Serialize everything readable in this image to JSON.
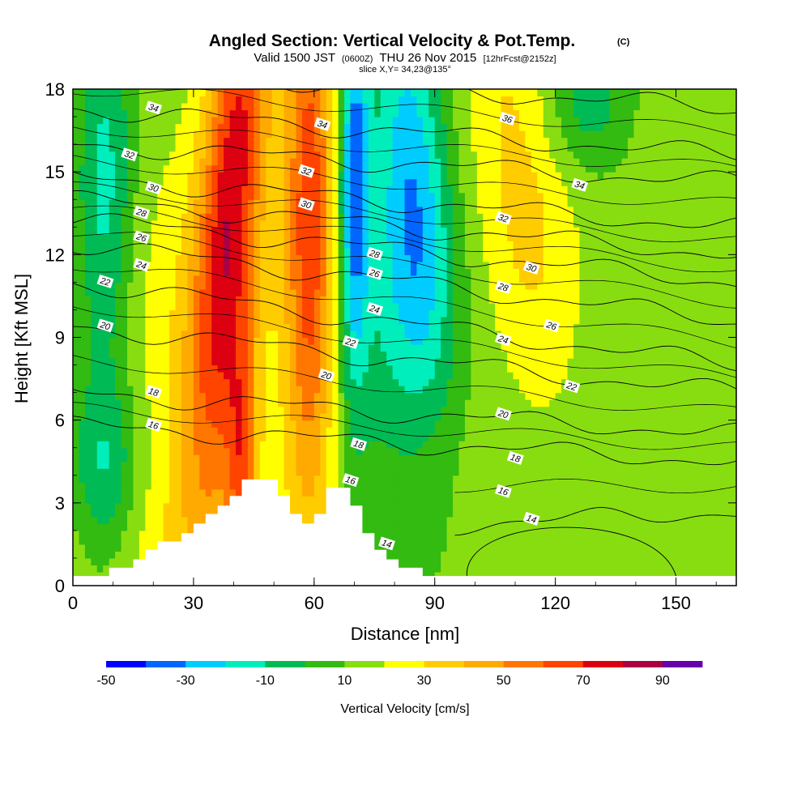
{
  "chart_data": {
    "type": "heatmap",
    "title": "Angled Section: Vertical Velocity & Pot.Temp.",
    "title_mark": "(C)",
    "subtitle": {
      "prefix": "Valid 1500 JST",
      "utc": "(0600Z)",
      "date": "THU 26 Nov 2015",
      "forecast": "[12hrFcst@2152z]"
    },
    "slice_label": "slice X,Y= 34,23@135°",
    "xlabel": "Distance [nm]",
    "ylabel": "Height [Kft MSL]",
    "xlim": [
      0,
      165
    ],
    "ylim": [
      0,
      18
    ],
    "x_ticks": [
      "0",
      "30",
      "60",
      "90",
      "120",
      "150"
    ],
    "y_ticks": [
      "0",
      "3",
      "6",
      "9",
      "12",
      "15",
      "18"
    ],
    "colorbar": {
      "label": "Vertical Velocity [cm/s]",
      "tick_labels": [
        "-50",
        "-30",
        "-10",
        "10",
        "30",
        "50",
        "70",
        "90"
      ],
      "colors": [
        "#0000ff",
        "#0066ff",
        "#00ccff",
        "#00eebb",
        "#00bb55",
        "#33bb11",
        "#88dd11",
        "#ffff00",
        "#ffcc00",
        "#ffaa00",
        "#ff7700",
        "#ff4400",
        "#dd0011",
        "#aa0044",
        "#6600aa"
      ]
    },
    "velocity_features": [
      {
        "x": 40,
        "z": 15,
        "sx": 5.5,
        "sz": 8,
        "tilt": 0.2,
        "value": 55
      },
      {
        "x": 38,
        "z": 8,
        "sx": 9,
        "sz": 6,
        "tilt": 0,
        "value": 18
      },
      {
        "x": 59,
        "z": 13,
        "sx": 4.5,
        "sz": 8,
        "tilt": 0,
        "value": 55
      },
      {
        "x": 70,
        "z": 15,
        "sx": 2.5,
        "sz": 5,
        "tilt": 0,
        "value": -45
      },
      {
        "x": 85,
        "z": 14.5,
        "sx": 6,
        "sz": 6,
        "tilt": -0.15,
        "value": -30
      },
      {
        "x": 80,
        "z": 10,
        "sx": 10,
        "sz": 6,
        "tilt": 0,
        "value": -22
      },
      {
        "x": 8,
        "z": 14.5,
        "sx": 5,
        "sz": 5,
        "tilt": 0,
        "value": -28
      },
      {
        "x": 8,
        "z": 4,
        "sx": 6,
        "sz": 2.5,
        "tilt": 0,
        "value": -25
      },
      {
        "x": 112,
        "z": 14,
        "sx": 9,
        "sz": 7,
        "tilt": -0.25,
        "value": 20
      },
      {
        "x": 128,
        "z": 17.5,
        "sx": 8,
        "sz": 1.8,
        "tilt": 0,
        "value": -20
      },
      {
        "x": 42,
        "z": 4.5,
        "sx": 2.5,
        "sz": 3,
        "tilt": 0,
        "value": 32
      },
      {
        "x": 20,
        "z": 9,
        "sx": 8,
        "sz": 5,
        "tilt": 0,
        "value": 8
      },
      {
        "x": 125,
        "z": 5,
        "sx": 28,
        "sz": 4,
        "tilt": 0,
        "value": -6
      },
      {
        "x": 90,
        "z": 5,
        "sx": 10,
        "sz": 3,
        "tilt": 0,
        "value": 9
      },
      {
        "x": 20,
        "z": 1.5,
        "sx": 20,
        "sz": 2,
        "tilt": 0,
        "value": 8
      },
      {
        "x": 150,
        "z": 12,
        "sx": 10,
        "sz": 6,
        "tilt": 0,
        "value": 5
      }
    ],
    "theta_contours": [
      {
        "label": "14",
        "x0": 95,
        "z0": 2.2,
        "x1": 165,
        "z1": 2.7
      },
      {
        "label": "16",
        "x0": 0,
        "z0": 5.8,
        "x1": 165,
        "z1": 4.5
      },
      {
        "label": "18",
        "x0": 0,
        "z0": 7.0,
        "x1": 165,
        "z1": 5.5
      },
      {
        "label": "20",
        "x0": 0,
        "z0": 9.4,
        "x1": 165,
        "z1": 7.0
      },
      {
        "label": "22",
        "x0": 0,
        "z0": 11.0,
        "x1": 165,
        "z1": 8.0
      },
      {
        "label": "24",
        "x0": 0,
        "z0": 12.4,
        "x1": 165,
        "z1": 9.6
      },
      {
        "label": "26",
        "x0": 0,
        "z0": 13.3,
        "x1": 165,
        "z1": 11.0
      },
      {
        "label": "28",
        "x0": 0,
        "z0": 14.0,
        "x1": 165,
        "z1": 12.0
      },
      {
        "label": "30",
        "x0": 0,
        "z0": 14.8,
        "x1": 165,
        "z1": 13.0
      },
      {
        "label": "32",
        "x0": 0,
        "z0": 16.0,
        "x1": 165,
        "z1": 14.6
      },
      {
        "label": "34",
        "x0": 0,
        "z0": 17.3,
        "x1": 165,
        "z1": 15.6
      },
      {
        "label": "36",
        "x0": 0,
        "z0": 18.8,
        "x1": 165,
        "z1": 17.3
      }
    ],
    "contour_labels": [
      {
        "text": "34",
        "x": 20,
        "z": 17.3
      },
      {
        "text": "34",
        "x": 62,
        "z": 16.7
      },
      {
        "text": "36",
        "x": 108,
        "z": 16.9
      },
      {
        "text": "34",
        "x": 126,
        "z": 14.5
      },
      {
        "text": "32",
        "x": 14,
        "z": 15.6
      },
      {
        "text": "32",
        "x": 58,
        "z": 15.0
      },
      {
        "text": "32",
        "x": 107,
        "z": 13.3
      },
      {
        "text": "30",
        "x": 20,
        "z": 14.4
      },
      {
        "text": "30",
        "x": 58,
        "z": 13.8
      },
      {
        "text": "30",
        "x": 114,
        "z": 11.5
      },
      {
        "text": "28",
        "x": 17,
        "z": 13.5
      },
      {
        "text": "28",
        "x": 75,
        "z": 12.0
      },
      {
        "text": "28",
        "x": 107,
        "z": 10.8
      },
      {
        "text": "26",
        "x": 17,
        "z": 12.6
      },
      {
        "text": "26",
        "x": 75,
        "z": 11.3
      },
      {
        "text": "26",
        "x": 119,
        "z": 9.4
      },
      {
        "text": "24",
        "x": 17,
        "z": 11.6
      },
      {
        "text": "24",
        "x": 75,
        "z": 10.0
      },
      {
        "text": "24",
        "x": 107,
        "z": 8.9
      },
      {
        "text": "22",
        "x": 8,
        "z": 11.0
      },
      {
        "text": "22",
        "x": 69,
        "z": 8.8
      },
      {
        "text": "22",
        "x": 124,
        "z": 7.2
      },
      {
        "text": "20",
        "x": 8,
        "z": 9.4
      },
      {
        "text": "20",
        "x": 63,
        "z": 7.6
      },
      {
        "text": "20",
        "x": 107,
        "z": 6.2
      },
      {
        "text": "18",
        "x": 20,
        "z": 7.0
      },
      {
        "text": "18",
        "x": 71,
        "z": 5.1
      },
      {
        "text": "18",
        "x": 110,
        "z": 4.6
      },
      {
        "text": "16",
        "x": 20,
        "z": 5.8
      },
      {
        "text": "16",
        "x": 69,
        "z": 3.8
      },
      {
        "text": "16",
        "x": 107,
        "z": 3.4
      },
      {
        "text": "14",
        "x": 78,
        "z": 1.5
      },
      {
        "text": "14",
        "x": 114,
        "z": 2.4
      }
    ],
    "terrain_profile": [
      {
        "x": 0,
        "z": 0.35
      },
      {
        "x": 9,
        "z": 0.35
      },
      {
        "x": 9,
        "z": 0.65
      },
      {
        "x": 15,
        "z": 0.65
      },
      {
        "x": 15,
        "z": 0.95
      },
      {
        "x": 18,
        "z": 0.95
      },
      {
        "x": 18,
        "z": 1.3
      },
      {
        "x": 21,
        "z": 1.3
      },
      {
        "x": 21,
        "z": 1.6
      },
      {
        "x": 27,
        "z": 1.6
      },
      {
        "x": 27,
        "z": 1.9
      },
      {
        "x": 30,
        "z": 1.9
      },
      {
        "x": 30,
        "z": 2.25
      },
      {
        "x": 33,
        "z": 2.25
      },
      {
        "x": 33,
        "z": 2.6
      },
      {
        "x": 36,
        "z": 2.6
      },
      {
        "x": 36,
        "z": 2.9
      },
      {
        "x": 39,
        "z": 2.9
      },
      {
        "x": 39,
        "z": 3.25
      },
      {
        "x": 42,
        "z": 3.25
      },
      {
        "x": 42,
        "z": 3.85
      },
      {
        "x": 51,
        "z": 3.85
      },
      {
        "x": 51,
        "z": 3.25
      },
      {
        "x": 54,
        "z": 3.25
      },
      {
        "x": 54,
        "z": 2.6
      },
      {
        "x": 57,
        "z": 2.6
      },
      {
        "x": 57,
        "z": 2.25
      },
      {
        "x": 60,
        "z": 2.25
      },
      {
        "x": 60,
        "z": 2.6
      },
      {
        "x": 63,
        "z": 2.6
      },
      {
        "x": 63,
        "z": 3.55
      },
      {
        "x": 69,
        "z": 3.55
      },
      {
        "x": 69,
        "z": 2.9
      },
      {
        "x": 72,
        "z": 2.9
      },
      {
        "x": 72,
        "z": 1.9
      },
      {
        "x": 75,
        "z": 1.9
      },
      {
        "x": 75,
        "z": 1.3
      },
      {
        "x": 78,
        "z": 1.3
      },
      {
        "x": 78,
        "z": 0.95
      },
      {
        "x": 81,
        "z": 0.95
      },
      {
        "x": 81,
        "z": 0.65
      },
      {
        "x": 87,
        "z": 0.65
      },
      {
        "x": 87,
        "z": 0.35
      },
      {
        "x": 165,
        "z": 0.35
      }
    ]
  }
}
